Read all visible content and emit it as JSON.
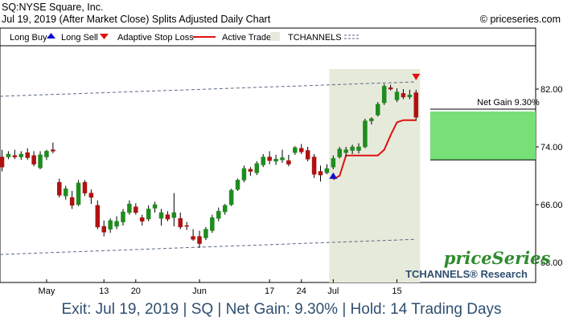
{
  "header": {
    "symbol_line": "SQ:NYSE Square, Inc.",
    "date_line": "Jul 19, 2019 (After Market Close)  Splits Adjusted Daily Chart",
    "copyright": "© priceseries.com"
  },
  "legend": {
    "long_buy": "Long Buy",
    "long_sell": "Long Sell",
    "adaptive_stop": "Adaptive Stop Loss",
    "active_trade": "Active Trade",
    "tchannels": "TCHANNELS"
  },
  "annotation": {
    "net_gain": "Net Gain 9.30%"
  },
  "brand": {
    "logo": "priceSeries",
    "research": "TCHANNELS® Research"
  },
  "footer": {
    "text": "Exit: Jul 19, 2019 | SQ | Net Gain: 9.30% | Hold: 14 Trading Days"
  },
  "colors": {
    "up": "#1e8c1e",
    "down": "#b01010",
    "stop": "#e01010",
    "buy_arrow": "#1010d0",
    "sell_arrow": "#e01010",
    "trade_shade": "#e6eadb",
    "gain_box": "#77e077",
    "channel": "#5a6a80",
    "brand": "#2f4f6f"
  },
  "chart_data": {
    "type": "candlestick",
    "ylim": [
      56,
      86
    ],
    "y_ticks": [
      "82.00",
      "74.00",
      "66.00",
      "58.00"
    ],
    "y_tick_values": [
      82,
      74,
      66,
      58
    ],
    "x_ticks": [
      {
        "label": "May",
        "index": 7
      },
      {
        "label": "13",
        "index": 16
      },
      {
        "label": "20",
        "index": 21
      },
      {
        "label": "Jun",
        "index": 31
      },
      {
        "label": "17",
        "index": 42
      },
      {
        "label": "24",
        "index": 47
      },
      {
        "label": "Jul",
        "index": 52
      },
      {
        "label": "15",
        "index": 62
      }
    ],
    "candles": [
      {
        "o": 72.6,
        "h": 73.6,
        "l": 70.6,
        "c": 71.2
      },
      {
        "o": 72.6,
        "h": 73.4,
        "l": 72.3,
        "c": 73.0
      },
      {
        "o": 72.8,
        "h": 73.6,
        "l": 72.3,
        "c": 72.6
      },
      {
        "o": 72.6,
        "h": 73.4,
        "l": 72.2,
        "c": 73.0
      },
      {
        "o": 73.2,
        "h": 73.8,
        "l": 72.2,
        "c": 72.5
      },
      {
        "o": 72.8,
        "h": 73.4,
        "l": 71.3,
        "c": 71.6
      },
      {
        "o": 71.1,
        "h": 73.4,
        "l": 70.9,
        "c": 72.9
      },
      {
        "o": 72.6,
        "h": 73.6,
        "l": 72.2,
        "c": 73.4
      },
      {
        "o": 73.6,
        "h": 74.6,
        "l": 73.1,
        "c": 73.4
      },
      {
        "o": 69.1,
        "h": 69.6,
        "l": 67.0,
        "c": 67.3
      },
      {
        "o": 67.2,
        "h": 68.6,
        "l": 66.7,
        "c": 68.2
      },
      {
        "o": 67.0,
        "h": 67.9,
        "l": 65.4,
        "c": 65.9
      },
      {
        "o": 66.0,
        "h": 69.4,
        "l": 65.8,
        "c": 69.0
      },
      {
        "o": 69.1,
        "h": 69.4,
        "l": 67.2,
        "c": 67.6
      },
      {
        "o": 67.6,
        "h": 68.1,
        "l": 66.1,
        "c": 67.0
      },
      {
        "o": 65.9,
        "h": 66.6,
        "l": 62.6,
        "c": 62.9
      },
      {
        "o": 63.0,
        "h": 63.8,
        "l": 61.6,
        "c": 62.2
      },
      {
        "o": 62.6,
        "h": 64.1,
        "l": 62.1,
        "c": 63.8
      },
      {
        "o": 63.0,
        "h": 64.4,
        "l": 62.6,
        "c": 63.7
      },
      {
        "o": 63.6,
        "h": 65.4,
        "l": 63.1,
        "c": 65.0
      },
      {
        "o": 64.9,
        "h": 66.6,
        "l": 64.6,
        "c": 66.1
      },
      {
        "o": 65.7,
        "h": 66.2,
        "l": 64.6,
        "c": 64.9
      },
      {
        "o": 64.2,
        "h": 64.6,
        "l": 63.1,
        "c": 63.7
      },
      {
        "o": 64.0,
        "h": 65.9,
        "l": 63.7,
        "c": 65.4
      },
      {
        "o": 65.5,
        "h": 66.4,
        "l": 64.9,
        "c": 66.0
      },
      {
        "o": 64.1,
        "h": 65.4,
        "l": 63.1,
        "c": 64.9
      },
      {
        "o": 64.6,
        "h": 65.1,
        "l": 63.7,
        "c": 64.0
      },
      {
        "o": 64.2,
        "h": 67.6,
        "l": 63.0,
        "c": 64.9
      },
      {
        "o": 64.1,
        "h": 64.9,
        "l": 62.6,
        "c": 62.9
      },
      {
        "o": 63.1,
        "h": 63.6,
        "l": 62.5,
        "c": 63.0
      },
      {
        "o": 61.6,
        "h": 62.6,
        "l": 61.0,
        "c": 61.2
      },
      {
        "o": 61.6,
        "h": 62.4,
        "l": 60.0,
        "c": 60.6
      },
      {
        "o": 61.4,
        "h": 62.9,
        "l": 61.1,
        "c": 62.6
      },
      {
        "o": 62.4,
        "h": 64.6,
        "l": 62.1,
        "c": 64.2
      },
      {
        "o": 64.1,
        "h": 65.6,
        "l": 63.7,
        "c": 65.1
      },
      {
        "o": 65.0,
        "h": 66.1,
        "l": 64.6,
        "c": 65.9
      },
      {
        "o": 66.0,
        "h": 68.2,
        "l": 65.8,
        "c": 68.0
      },
      {
        "o": 68.1,
        "h": 69.6,
        "l": 67.9,
        "c": 69.4
      },
      {
        "o": 69.4,
        "h": 71.4,
        "l": 69.1,
        "c": 71.0
      },
      {
        "o": 70.9,
        "h": 71.2,
        "l": 70.0,
        "c": 70.6
      },
      {
        "o": 70.4,
        "h": 72.0,
        "l": 70.1,
        "c": 71.7
      },
      {
        "o": 71.5,
        "h": 73.0,
        "l": 71.2,
        "c": 72.6
      },
      {
        "o": 72.6,
        "h": 73.4,
        "l": 71.6,
        "c": 72.1
      },
      {
        "o": 72.0,
        "h": 72.9,
        "l": 71.5,
        "c": 72.3
      },
      {
        "o": 72.2,
        "h": 73.6,
        "l": 71.8,
        "c": 72.5
      },
      {
        "o": 72.1,
        "h": 72.9,
        "l": 71.3,
        "c": 71.6
      },
      {
        "o": 73.2,
        "h": 74.1,
        "l": 72.9,
        "c": 73.9
      },
      {
        "o": 73.8,
        "h": 74.4,
        "l": 73.0,
        "c": 73.3
      },
      {
        "o": 73.5,
        "h": 74.0,
        "l": 72.0,
        "c": 72.3
      },
      {
        "o": 72.6,
        "h": 73.0,
        "l": 69.7,
        "c": 70.2
      },
      {
        "o": 70.6,
        "h": 71.4,
        "l": 69.2,
        "c": 70.1
      },
      {
        "o": 70.4,
        "h": 71.6,
        "l": 70.2,
        "c": 71.0
      },
      {
        "o": 71.2,
        "h": 72.8,
        "l": 70.9,
        "c": 72.4
      },
      {
        "o": 72.6,
        "h": 74.0,
        "l": 72.4,
        "c": 73.7
      },
      {
        "o": 73.2,
        "h": 74.0,
        "l": 72.7,
        "c": 73.6
      },
      {
        "o": 73.5,
        "h": 74.3,
        "l": 73.0,
        "c": 74.0
      },
      {
        "o": 73.5,
        "h": 74.5,
        "l": 73.1,
        "c": 74.0
      },
      {
        "o": 74.0,
        "h": 77.9,
        "l": 73.8,
        "c": 77.6
      },
      {
        "o": 77.6,
        "h": 78.1,
        "l": 77.1,
        "c": 77.9
      },
      {
        "o": 78.4,
        "h": 80.2,
        "l": 78.2,
        "c": 79.9
      },
      {
        "o": 80.1,
        "h": 82.7,
        "l": 79.8,
        "c": 82.4
      },
      {
        "o": 82.2,
        "h": 82.6,
        "l": 81.8,
        "c": 82.0
      },
      {
        "o": 80.5,
        "h": 82.1,
        "l": 80.2,
        "c": 81.6
      },
      {
        "o": 81.4,
        "h": 82.0,
        "l": 80.6,
        "c": 80.9
      },
      {
        "o": 80.9,
        "h": 81.9,
        "l": 80.6,
        "c": 81.2
      },
      {
        "o": 81.5,
        "h": 81.9,
        "l": 77.6,
        "c": 78.1
      }
    ],
    "trade": {
      "entry_index": 52,
      "exit_index": 65
    },
    "buy_signal_index": 52,
    "sell_signal_index": 65,
    "stop_loss": [
      {
        "i": 52,
        "v": 69.5
      },
      {
        "i": 53,
        "v": 70.0
      },
      {
        "i": 54,
        "v": 72.8
      },
      {
        "i": 56,
        "v": 72.8
      },
      {
        "i": 59,
        "v": 72.8
      },
      {
        "i": 60,
        "v": 73.6
      },
      {
        "i": 61,
        "v": 75.6
      },
      {
        "i": 62,
        "v": 77.4
      },
      {
        "i": 63,
        "v": 77.7
      },
      {
        "i": 65,
        "v": 77.7
      }
    ],
    "channel_upper": [
      {
        "i": 0,
        "v": 81.0
      },
      {
        "i": 65,
        "v": 83.0
      }
    ],
    "channel_lower": [
      {
        "i": 0,
        "v": 59.1
      },
      {
        "i": 65,
        "v": 61.2
      }
    ],
    "gain_box": {
      "low": 72.2,
      "high": 78.9
    }
  }
}
